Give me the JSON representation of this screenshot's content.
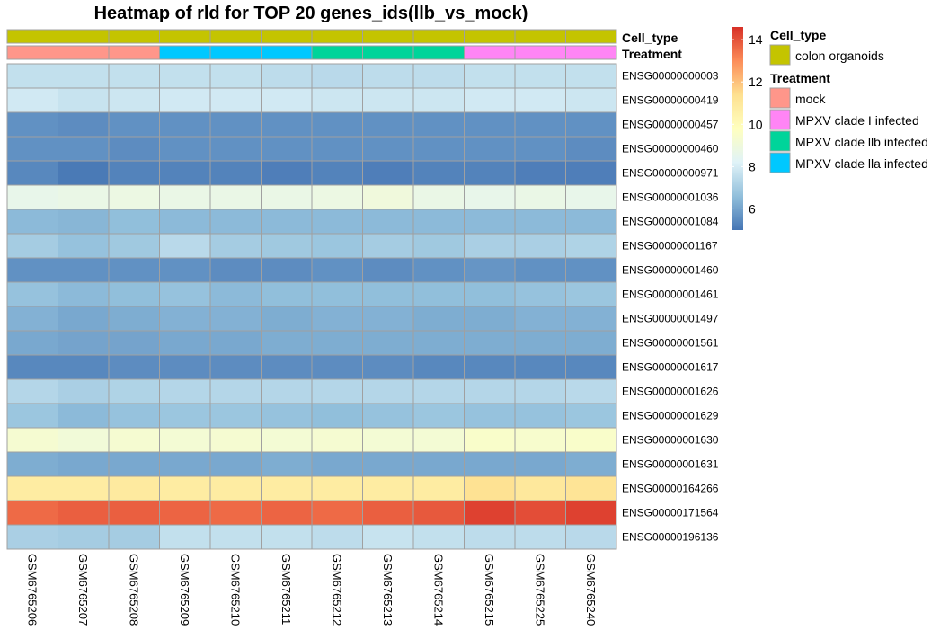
{
  "chart_data": {
    "type": "heatmap",
    "title": "Heatmap of rld for TOP 20 genes_ids(llb_vs_mock)",
    "columns": [
      "GSM6765206",
      "GSM6765207",
      "GSM6765208",
      "GSM6765209",
      "GSM6765210",
      "GSM6765211",
      "GSM6765212",
      "GSM6765213",
      "GSM6765214",
      "GSM6765215",
      "GSM6765225",
      "GSM6765240"
    ],
    "rows": [
      "ENSG00000000003",
      "ENSG00000000419",
      "ENSG00000000457",
      "ENSG00000000460",
      "ENSG00000000971",
      "ENSG00000001036",
      "ENSG00000001084",
      "ENSG00000001167",
      "ENSG00000001460",
      "ENSG00000001461",
      "ENSG00000001497",
      "ENSG00000001561",
      "ENSG00000001617",
      "ENSG00000001626",
      "ENSG00000001629",
      "ENSG00000001630",
      "ENSG00000001631",
      "ENSG00000164266",
      "ENSG00000171564",
      "ENSG00000196136"
    ],
    "values": [
      [
        7.6,
        7.6,
        7.6,
        7.6,
        7.6,
        7.5,
        7.4,
        7.5,
        7.5,
        7.6,
        7.6,
        7.6
      ],
      [
        7.9,
        7.7,
        7.8,
        7.9,
        7.9,
        7.9,
        7.8,
        7.8,
        7.8,
        7.9,
        7.9,
        7.8
      ],
      [
        5.6,
        5.5,
        5.6,
        5.6,
        5.6,
        5.6,
        5.6,
        5.6,
        5.6,
        5.6,
        5.6,
        5.6
      ],
      [
        5.6,
        5.6,
        5.5,
        5.6,
        5.6,
        5.6,
        5.6,
        5.6,
        5.6,
        5.6,
        5.6,
        5.5
      ],
      [
        5.4,
        5.1,
        5.3,
        5.3,
        5.3,
        5.2,
        5.3,
        5.2,
        5.3,
        5.3,
        5.2,
        5.2
      ],
      [
        8.6,
        8.7,
        8.8,
        8.7,
        8.7,
        8.7,
        8.8,
        9.0,
        8.7,
        8.6,
        8.7,
        8.6
      ],
      [
        6.5,
        6.4,
        6.6,
        6.5,
        6.5,
        6.5,
        6.5,
        6.5,
        6.5,
        6.5,
        6.5,
        6.5
      ],
      [
        7.0,
        6.7,
        6.9,
        7.4,
        7.0,
        6.9,
        6.8,
        7.0,
        6.9,
        7.1,
        7.1,
        7.2
      ],
      [
        5.6,
        5.6,
        5.6,
        5.6,
        5.5,
        5.5,
        5.6,
        5.5,
        5.6,
        5.7,
        5.6,
        5.6
      ],
      [
        6.7,
        6.5,
        6.6,
        6.7,
        6.5,
        6.6,
        6.6,
        6.6,
        6.6,
        6.6,
        6.7,
        6.8
      ],
      [
        6.3,
        6.1,
        6.2,
        6.3,
        6.3,
        6.2,
        6.3,
        6.3,
        6.2,
        6.2,
        6.3,
        6.3
      ],
      [
        6.1,
        6.0,
        6.0,
        6.1,
        6.1,
        6.2,
        6.2,
        6.2,
        6.2,
        6.2,
        6.2,
        6.2
      ],
      [
        5.4,
        5.4,
        5.5,
        5.5,
        5.5,
        5.5,
        5.5,
        5.5,
        5.4,
        5.4,
        5.4,
        5.4
      ],
      [
        7.3,
        7.1,
        7.2,
        7.3,
        7.3,
        7.3,
        7.3,
        7.3,
        7.3,
        7.3,
        7.3,
        7.4
      ],
      [
        6.8,
        6.5,
        6.7,
        6.8,
        6.8,
        6.7,
        6.6,
        6.7,
        6.8,
        6.7,
        6.7,
        6.8
      ],
      [
        9.3,
        9.1,
        9.3,
        9.2,
        9.3,
        9.2,
        9.3,
        9.2,
        9.2,
        9.5,
        9.4,
        9.5
      ],
      [
        6.2,
        6.1,
        6.1,
        6.1,
        6.1,
        6.2,
        6.1,
        6.1,
        6.1,
        6.1,
        6.1,
        6.2
      ],
      [
        10.8,
        10.8,
        10.9,
        10.8,
        10.8,
        10.8,
        10.8,
        10.8,
        10.8,
        11.3,
        11.0,
        11.2
      ],
      [
        13.6,
        13.8,
        13.8,
        13.7,
        13.6,
        13.7,
        13.6,
        13.8,
        13.9,
        14.3,
        14.1,
        14.3
      ],
      [
        7.1,
        7.0,
        7.0,
        7.6,
        7.6,
        7.6,
        7.5,
        7.7,
        7.6,
        7.5,
        7.5,
        7.4
      ]
    ],
    "color_scale": {
      "range": [
        5,
        14.6
      ],
      "ticks": [
        6,
        8,
        10,
        12,
        14
      ],
      "stops": [
        "#4575B4",
        "#91BFDB",
        "#E0F3F8",
        "#FFFFBF",
        "#FEE090",
        "#FC8D59",
        "#D73027"
      ]
    },
    "annotations": {
      "labels": [
        "Cell_type",
        "Treatment"
      ],
      "cell_type": [
        "colon organoids",
        "colon organoids",
        "colon organoids",
        "colon organoids",
        "colon organoids",
        "colon organoids",
        "colon organoids",
        "colon organoids",
        "colon organoids",
        "colon organoids",
        "colon organoids",
        "colon organoids"
      ],
      "treatment": [
        "mock",
        "mock",
        "mock",
        "MPXV clade IIa infected",
        "MPXV clade IIa infected",
        "MPXV clade IIa infected",
        "MPXV clade IIb infected",
        "MPXV clade IIb infected",
        "MPXV clade IIb infected",
        "MPXV clade I infected",
        "MPXV clade I infected",
        "MPXV clade I infected"
      ]
    },
    "legend": {
      "groups": [
        {
          "title": "Cell_type",
          "items": [
            {
              "label": "colon organoids",
              "color": "#C4C400"
            }
          ]
        },
        {
          "title": "Treatment",
          "items": [
            {
              "label": "mock",
              "color": "#FF968A"
            },
            {
              "label": "MPXV clade I infected",
              "color": "#FF85F5"
            },
            {
              "label": "MPXV clade llb infected",
              "color": "#00D49A"
            },
            {
              "label": "MPXV clade lla infected",
              "color": "#00C8FF"
            }
          ]
        }
      ],
      "placement": "right"
    }
  },
  "colors": {
    "cell_border": "#A0A0A0",
    "colon organoids": "#C4C400",
    "mock": "#FF968A",
    "MPXV clade I infected": "#FF85F5",
    "MPXV clade IIb infected": "#00D49A",
    "MPXV clade IIa infected": "#00C8FF"
  }
}
